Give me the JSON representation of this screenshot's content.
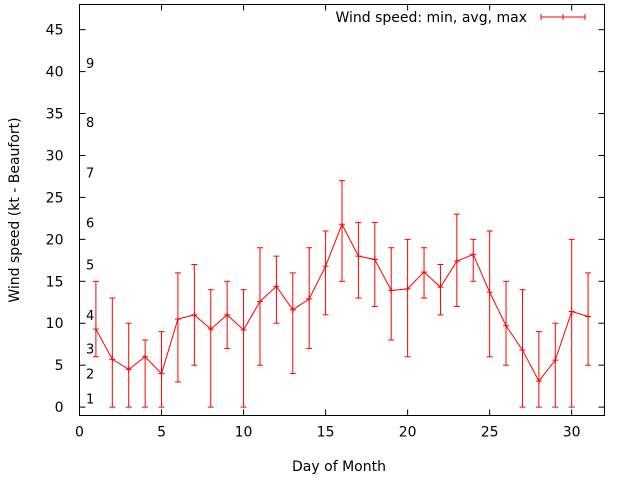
{
  "chart_data": {
    "type": "line",
    "xlabel": "Day of Month",
    "ylabel": "Wind speed (kt - Beaufort)",
    "xlim": [
      0,
      32
    ],
    "ylim": [
      -1,
      48
    ],
    "x_ticks": [
      0,
      5,
      10,
      15,
      20,
      25,
      30
    ],
    "y_ticks": [
      0,
      5,
      10,
      15,
      20,
      25,
      30,
      35,
      40,
      45
    ],
    "grid": false,
    "legend_position": "top-right",
    "series_color": "#ff0000",
    "beaufort_labels": [
      {
        "label": "1",
        "kt": 1
      },
      {
        "label": "2",
        "kt": 4
      },
      {
        "label": "3",
        "kt": 7
      },
      {
        "label": "4",
        "kt": 11
      },
      {
        "label": "5",
        "kt": 17
      },
      {
        "label": "6",
        "kt": 22
      },
      {
        "label": "7",
        "kt": 28
      },
      {
        "label": "8",
        "kt": 34
      },
      {
        "label": "9",
        "kt": 41
      }
    ],
    "series": [
      {
        "name": "Wind speed: min, avg, max",
        "x": [
          1,
          2,
          3,
          4,
          5,
          6,
          7,
          8,
          9,
          10,
          11,
          12,
          13,
          14,
          15,
          16,
          17,
          18,
          19,
          20,
          21,
          22,
          23,
          24,
          25,
          26,
          27,
          28,
          29,
          30,
          31
        ],
        "avg": [
          9.3,
          5.7,
          4.5,
          6,
          4,
          10.5,
          11,
          9.3,
          11,
          9.2,
          12.6,
          14.4,
          11.6,
          12.9,
          16.8,
          21.8,
          18,
          17.6,
          13.9,
          14.1,
          16.1,
          14.3,
          17.4,
          18.2,
          13.7,
          9.7,
          6.8,
          3.1,
          5.6,
          11.4,
          10.8
        ],
        "min": [
          6,
          0,
          0,
          0,
          0,
          3,
          5,
          0,
          7,
          0,
          5,
          10,
          4,
          7,
          11,
          15,
          13,
          12,
          8,
          6,
          13,
          11,
          12,
          15,
          6,
          5,
          0,
          0,
          0,
          0,
          5
        ],
        "max": [
          15,
          13,
          10,
          8,
          9,
          16,
          17,
          14,
          15,
          14,
          19,
          18,
          16,
          19,
          21,
          27,
          22,
          22,
          19,
          20,
          19,
          17,
          23,
          20,
          21,
          15,
          14,
          9,
          10,
          20,
          16
        ]
      }
    ]
  }
}
